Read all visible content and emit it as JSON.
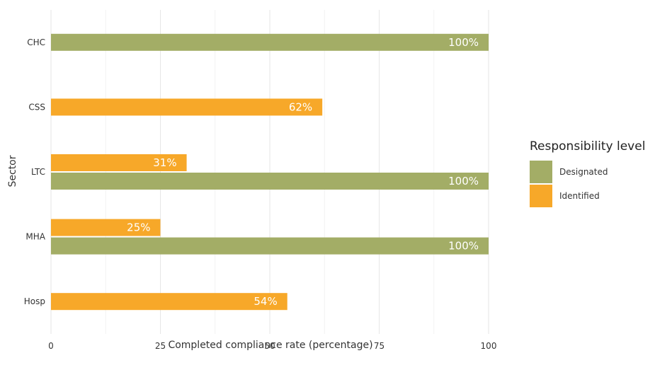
{
  "chart_data": {
    "type": "bar",
    "orientation": "horizontal",
    "xlabel": "Completed compliance rate (percentage)",
    "ylabel": "Sector",
    "xlim": [
      0,
      100
    ],
    "x_ticks": [
      0,
      25,
      50,
      75,
      100
    ],
    "categories": [
      "CHC",
      "CSS",
      "LTC",
      "MHA",
      "Hosp"
    ],
    "series": [
      {
        "name": "Designated",
        "color": "#a3ad66",
        "values": [
          100,
          null,
          100,
          100,
          null
        ],
        "labels": [
          "100%",
          null,
          "100%",
          "100%",
          null
        ]
      },
      {
        "name": "Identified",
        "color": "#f7a829",
        "values": [
          null,
          62,
          31,
          25,
          54
        ],
        "labels": [
          null,
          "62%",
          "31%",
          "25%",
          "54%"
        ]
      }
    ],
    "grid": true,
    "legend": {
      "title": "Responsibility level",
      "position": "right"
    }
  }
}
